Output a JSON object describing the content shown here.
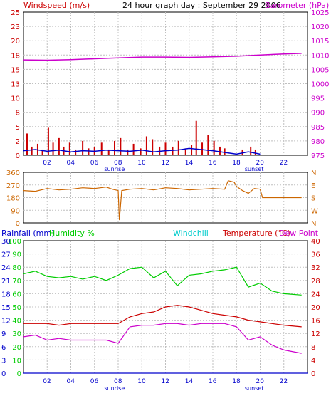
{
  "header": {
    "left_label": "Windspeed (m/s)",
    "title": "24 hour graph day : September 29 2006",
    "right_label": "Barometer (hPa)"
  },
  "colors": {
    "windspeed": "#cc0000",
    "wind_avg": "#0000cc",
    "barometer": "#cc00cc",
    "direction": "#cc6600",
    "humidity": "#00cc00",
    "windchill": "#00cccc",
    "temperature": "#cc0000",
    "dewpoint": "#cc00cc",
    "rainfall": "#0000cc",
    "grid": "#c0c0c0",
    "axis_text": "#0000cc"
  },
  "x_ticks": [
    "02",
    "04",
    "06",
    "08",
    "10",
    "12",
    "14",
    "16",
    "18",
    "20",
    "22"
  ],
  "sun_labels": {
    "sunrise": "sunrise",
    "sunset": "sunset"
  },
  "chart_data": [
    {
      "type": "line",
      "name": "wind-barometer",
      "title": "24 hour graph day : September 29 2006",
      "y_left": {
        "label": "Windspeed (m/s)",
        "ticks": [
          0,
          2,
          5,
          8,
          10,
          13,
          15,
          18,
          20,
          23,
          25
        ],
        "range": [
          0,
          25
        ]
      },
      "y_right": {
        "label": "Barometer (hPa)",
        "ticks": [
          975,
          980,
          985,
          990,
          995,
          1000,
          1005,
          1010,
          1015,
          1020,
          1025
        ],
        "range": [
          975,
          1025
        ]
      },
      "x_range": [
        0,
        24
      ],
      "series": [
        {
          "name": "Windspeed (m/s)",
          "kind": "bars",
          "x": [
            0.3,
            0.7,
            1.2,
            1.6,
            2.1,
            2.5,
            3.0,
            3.4,
            3.9,
            4.4,
            5.0,
            5.5,
            6.0,
            6.6,
            7.2,
            7.7,
            8.2,
            8.8,
            9.3,
            9.9,
            10.4,
            10.9,
            11.5,
            12.0,
            12.6,
            13.1,
            13.7,
            14.2,
            14.6,
            15.1,
            15.6,
            16.1,
            16.6,
            17.0,
            18.5,
            19.2,
            19.6
          ],
          "y": [
            3.8,
            1.5,
            2.0,
            1.0,
            4.8,
            2.2,
            3.0,
            1.5,
            2.2,
            1.0,
            2.5,
            1.2,
            1.5,
            2.2,
            1.0,
            2.5,
            3.0,
            1.0,
            2.0,
            1.2,
            3.3,
            2.8,
            1.5,
            2.2,
            1.5,
            2.5,
            1.2,
            1.8,
            6.0,
            2.2,
            3.5,
            2.5,
            1.5,
            1.2,
            1.0,
            1.5,
            1.0
          ]
        },
        {
          "name": "Wind avg",
          "kind": "line",
          "x": [
            0,
            1,
            2,
            3,
            4,
            5,
            6,
            7,
            8,
            9,
            10,
            11,
            12,
            13,
            14,
            15,
            16,
            17,
            18,
            19,
            20
          ],
          "y": [
            0.8,
            1.0,
            0.7,
            0.9,
            0.6,
            0.8,
            0.7,
            0.9,
            0.8,
            0.7,
            0.9,
            0.6,
            0.8,
            0.9,
            1.2,
            1.0,
            0.8,
            0.5,
            0.2,
            0.6,
            0.2
          ]
        },
        {
          "name": "Barometer (hPa)",
          "kind": "line",
          "axis": "right",
          "x": [
            0,
            2,
            4,
            6,
            8,
            10,
            12,
            14,
            16,
            18,
            20,
            22,
            23.5
          ],
          "y": [
            1008.3,
            1008.2,
            1008.4,
            1008.7,
            1009.0,
            1009.3,
            1009.3,
            1009.2,
            1009.4,
            1009.6,
            1010.0,
            1010.4,
            1010.6
          ]
        }
      ]
    },
    {
      "type": "line",
      "name": "wind-direction",
      "y_left": {
        "ticks": [
          0,
          90,
          180,
          270,
          360
        ],
        "range": [
          0,
          360
        ]
      },
      "y_right": {
        "ticks": [
          "N",
          "W",
          "S",
          "E",
          "N"
        ]
      },
      "x_range": [
        0,
        24
      ],
      "series": [
        {
          "name": "Wind direction",
          "x": [
            0,
            1,
            2,
            3,
            4,
            5,
            6,
            7,
            7.5,
            8,
            8.1,
            8.3,
            9,
            10,
            11,
            12,
            13,
            14,
            15,
            16,
            17,
            17.3,
            17.8,
            18,
            18.5,
            19,
            19.5,
            20,
            20.2,
            21,
            23.5
          ],
          "y": [
            230,
            225,
            245,
            235,
            240,
            250,
            245,
            255,
            240,
            230,
            20,
            230,
            240,
            245,
            235,
            250,
            245,
            235,
            240,
            245,
            240,
            300,
            290,
            260,
            230,
            210,
            245,
            240,
            180,
            180,
            180
          ]
        }
      ]
    },
    {
      "type": "line",
      "name": "temp-humidity",
      "y_left_rain": {
        "label": "Rainfall (mm)",
        "ticks": [
          0,
          3,
          6,
          9,
          12,
          15,
          18,
          21,
          24,
          27,
          30
        ]
      },
      "y_left_humidity": {
        "label": "Humidity %",
        "ticks": [
          0,
          10,
          20,
          30,
          40,
          50,
          60,
          70,
          80,
          90,
          100
        ]
      },
      "y_right_temp": {
        "label": "Temperature (°C)",
        "ticks": [
          0,
          4,
          8,
          12,
          16,
          20,
          24,
          28,
          32,
          36,
          40
        ]
      },
      "labels": {
        "rain": "Rainfall (mm)",
        "humidity": "Humidity %",
        "windchill": "Windchill",
        "temperature": "Temperature (°C)",
        "dewpoint": "Dew Point"
      },
      "x_range": [
        0,
        24
      ],
      "series": [
        {
          "name": "Humidity %",
          "x": [
            0,
            1,
            2,
            3,
            4,
            5,
            6,
            7,
            8,
            9,
            10,
            11,
            12,
            13,
            14,
            15,
            16,
            17,
            18,
            19,
            20,
            21,
            22,
            23.5
          ],
          "y": [
            75,
            77,
            73,
            72,
            73,
            71,
            73,
            70,
            74,
            79,
            80,
            72,
            77,
            66,
            74,
            75,
            77,
            78,
            80,
            65,
            68,
            62,
            60,
            59
          ]
        },
        {
          "name": "Temperature (°C)",
          "x": [
            0,
            1,
            2,
            3,
            4,
            5,
            6,
            7,
            8,
            9,
            10,
            11,
            12,
            13,
            14,
            15,
            16,
            17,
            18,
            19,
            20,
            21,
            22,
            23.5
          ],
          "y": [
            15,
            15,
            15,
            14.5,
            15,
            15,
            15,
            15,
            15,
            17,
            18,
            18.5,
            20,
            20.5,
            20,
            19,
            18,
            17.5,
            17,
            16,
            15.5,
            15,
            14.5,
            14
          ]
        },
        {
          "name": "Dew Point",
          "x": [
            0,
            1,
            2,
            3,
            4,
            5,
            6,
            7,
            8,
            9,
            10,
            11,
            12,
            13,
            14,
            15,
            16,
            17,
            18,
            19,
            20,
            21,
            22,
            23.5
          ],
          "y": [
            11,
            11.5,
            10,
            10.5,
            10,
            10,
            10,
            10,
            9,
            14,
            14.5,
            14.5,
            15,
            15,
            14.5,
            15,
            15,
            15,
            14,
            10,
            11,
            8.5,
            7,
            6
          ]
        },
        {
          "name": "Rainfall (mm)",
          "x": [
            0,
            24
          ],
          "y": [
            0,
            0
          ]
        }
      ]
    }
  ]
}
